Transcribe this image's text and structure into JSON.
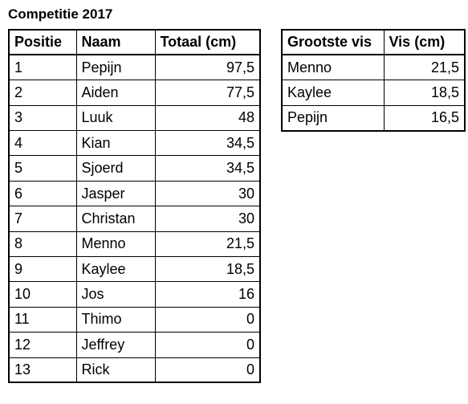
{
  "title": "Competitie 2017",
  "main_table": {
    "headers": [
      "Positie",
      "Naam",
      "Totaal (cm)"
    ],
    "rows": [
      [
        "1",
        "Pepijn",
        "97,5"
      ],
      [
        "2",
        "Aiden",
        "77,5"
      ],
      [
        "3",
        "Luuk",
        "48"
      ],
      [
        "4",
        "Kian",
        "34,5"
      ],
      [
        "5",
        "Sjoerd",
        "34,5"
      ],
      [
        "6",
        "Jasper",
        "30"
      ],
      [
        "7",
        "Christan",
        "30"
      ],
      [
        "8",
        "Menno",
        "21,5"
      ],
      [
        "9",
        "Kaylee",
        "18,5"
      ],
      [
        "10",
        "Jos",
        "16"
      ],
      [
        "11",
        "Thimo",
        "0"
      ],
      [
        "12",
        "Jeffrey",
        "0"
      ],
      [
        "13",
        "Rick",
        "0"
      ]
    ]
  },
  "fish_table": {
    "headers": [
      "Grootste vis",
      "Vis (cm)"
    ],
    "rows": [
      [
        "Menno",
        "21,5"
      ],
      [
        "Kaylee",
        "18,5"
      ],
      [
        "Pepijn",
        "16,5"
      ]
    ]
  }
}
